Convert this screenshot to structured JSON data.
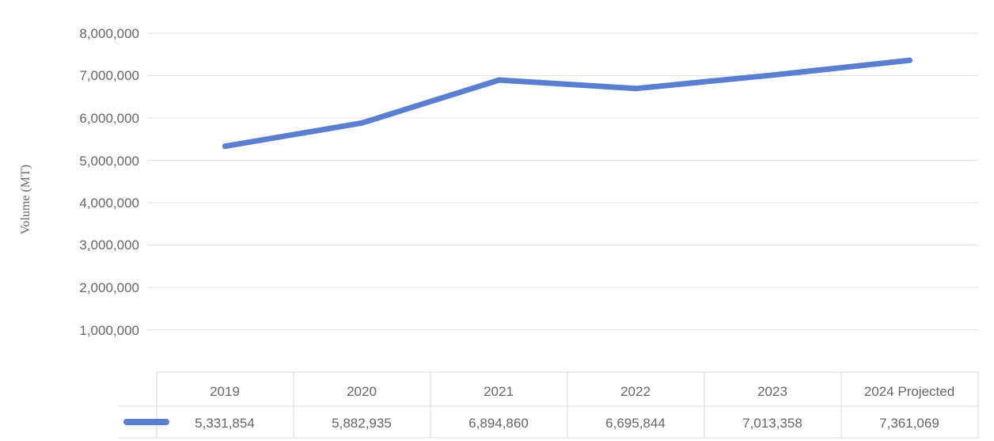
{
  "chart_data": {
    "type": "line",
    "ylabel": "Volume (MT)",
    "ylim": [
      0,
      8000000
    ],
    "yticks": [
      "8,000,000",
      "7,000,000",
      "6,000,000",
      "5,000,000",
      "4,000,000",
      "3,000,000",
      "2,000,000",
      "1,000,000"
    ],
    "categories": [
      "2019",
      "2020",
      "2021",
      "2022",
      "2023",
      "2024 Projected"
    ],
    "series": [
      {
        "values": [
          5331854,
          5882935,
          6894860,
          6695844,
          7013358,
          7361069
        ],
        "labels": [
          "5,331,854",
          "5,882,935",
          "6,894,860",
          "6,695,844",
          "7,013,358",
          "7,361,069"
        ],
        "color": "#5b7fd0"
      }
    ],
    "grid": true,
    "legend": "data-table"
  }
}
